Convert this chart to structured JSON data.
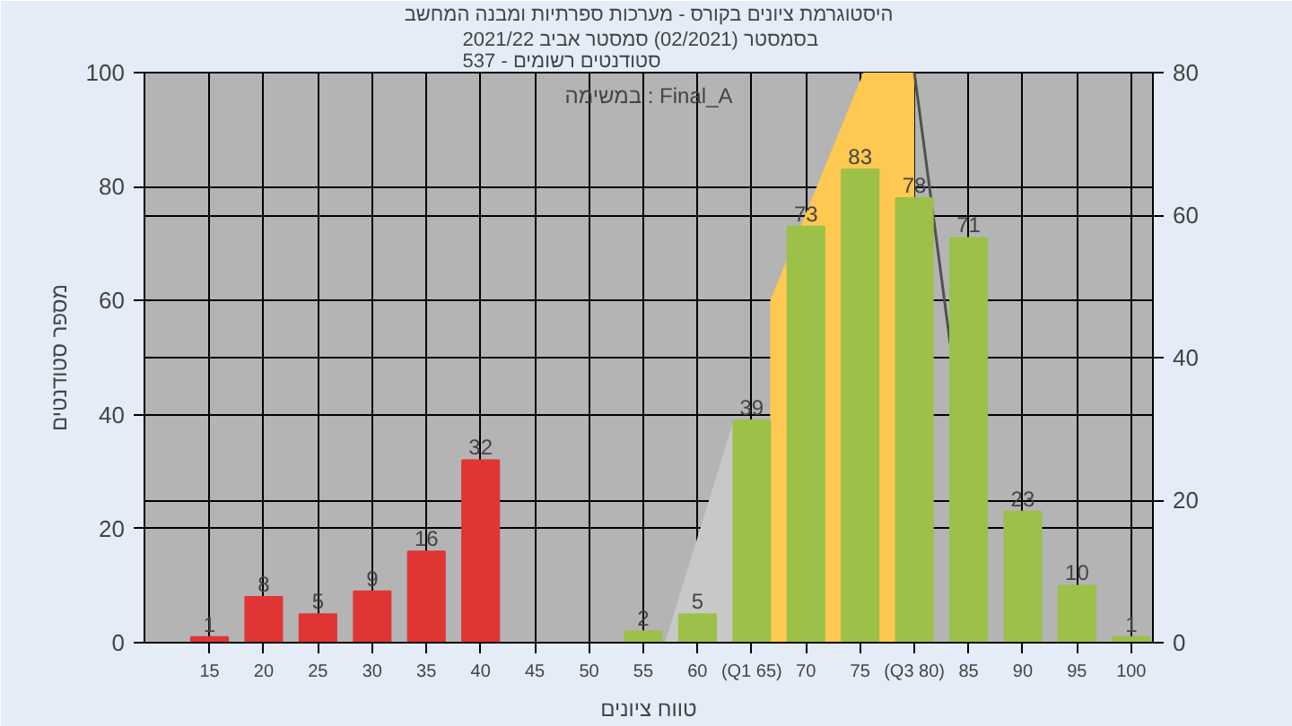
{
  "chart_data": {
    "type": "bar",
    "title": "היסטוגרמת ציונים בקורס - מערכות ספרתיות ומבנה המחשב",
    "subtitle": "בסמסטר   (02/2021)  סמסטר אביב 2021/22\nסטודנטים רשומים - 537",
    "xlabel": "טווח ציונים",
    "ylabel": "מספר סטודנטים",
    "annotations": [
      "במשימה : Final_A"
    ],
    "x": [
      15,
      20,
      25,
      30,
      35,
      40,
      45,
      50,
      55,
      60,
      65,
      70,
      75,
      80,
      85,
      90,
      95,
      100
    ],
    "series": [
      {
        "type": "area",
        "axis": "y2",
        "x": [
          57,
          63.3
        ],
        "values": [
          0,
          31
        ],
        "color": "#c8c8c8"
      },
      {
        "type": "area",
        "axis": "y2",
        "x": [
          66.7,
          75.3,
          80
        ],
        "values": [
          48,
          80,
          80
        ],
        "color": "#ffc850"
      },
      {
        "type": "line",
        "axis": "y2",
        "x": [
          80,
          83.3
        ],
        "values": [
          80,
          42
        ],
        "color": "#505050"
      },
      {
        "colors": [
          "#e03535",
          "#e03535",
          "#e03535",
          "#e03535",
          "#e03535",
          "#e03535",
          "#e03535",
          "#e03535",
          "#9cc048",
          "#9cc048",
          "#9cc048",
          "#9cc048",
          "#9cc048",
          "#9cc048",
          "#9cc048",
          "#9cc048",
          "#9cc048",
          "#9cc048"
        ],
        "values": [
          1,
          8,
          5,
          9,
          16,
          32,
          0,
          0,
          2,
          5,
          39,
          73,
          83,
          78,
          71,
          23,
          10,
          1
        ],
        "value_labels": [
          "1",
          "8",
          "5",
          "9",
          "16",
          "32",
          null,
          null,
          "2",
          "5",
          "39",
          "73",
          "83",
          "78",
          "71",
          "23",
          "10",
          "1"
        ]
      }
    ],
    "xlim": [
      9,
      102
    ],
    "xticks": [
      15,
      20,
      25,
      30,
      35,
      40,
      45,
      50,
      55,
      60,
      {
        "value": 65,
        "label": "(Q1 65)"
      },
      70,
      75,
      {
        "value": 80,
        "label": "(Q3 80)"
      },
      85,
      90,
      95,
      100
    ],
    "ylim": [
      0,
      100
    ],
    "yticks": [
      0,
      20,
      40,
      60,
      80,
      100
    ],
    "y2lim": [
      0,
      80
    ],
    "y2ticks": [
      0,
      20,
      40,
      60,
      80
    ],
    "grid": true
  }
}
